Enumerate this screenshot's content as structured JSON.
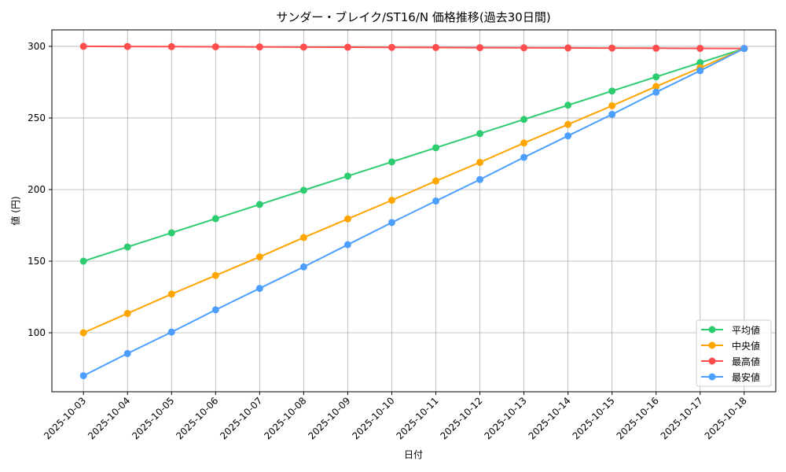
{
  "chart_data": {
    "type": "line",
    "title": "サンダー・ブレイク/ST16/N 価格推移(過去30日間)",
    "xlabel": "日付",
    "ylabel": "値 (円)",
    "ylim": [
      58.8,
      311.5
    ],
    "yticks": [
      100,
      150,
      200,
      250,
      300
    ],
    "grid": true,
    "legend_position": "lower-right",
    "categories": [
      "2025-10-03",
      "2025-10-04",
      "2025-10-05",
      "2025-10-06",
      "2025-10-07",
      "2025-10-08",
      "2025-10-09",
      "2025-10-10",
      "2025-10-11",
      "2025-10-12",
      "2025-10-13",
      "2025-10-14",
      "2025-10-15",
      "2025-10-16",
      "2025-10-17",
      "2025-10-18"
    ],
    "series": [
      {
        "name": "平均値",
        "color": "#2ecc71",
        "values": [
          150,
          159.9,
          169.8,
          179.7,
          189.6,
          199.5,
          209.4,
          219.3,
          229.2,
          239.1,
          249,
          258.9,
          268.8,
          278.7,
          288.6,
          298.5
        ]
      },
      {
        "name": "中央値",
        "color": "#ffa500",
        "values": [
          100,
          113.5,
          127,
          140,
          153,
          166.5,
          179.5,
          192.5,
          206,
          219,
          232.5,
          245.5,
          258.5,
          272,
          285,
          298.5
        ]
      },
      {
        "name": "最高値",
        "color": "#ff4d4d",
        "values": [
          300,
          299.9,
          299.8,
          299.7,
          299.6,
          299.5,
          299.4,
          299.3,
          299.2,
          299.1,
          299,
          298.9,
          298.8,
          298.7,
          298.6,
          298.5
        ]
      },
      {
        "name": "最安値",
        "color": "#4d9fff",
        "values": [
          70,
          85.5,
          100.5,
          116,
          131,
          146,
          161.5,
          177,
          192,
          207,
          222.5,
          237.5,
          252.5,
          268,
          283,
          298.5
        ]
      }
    ]
  }
}
